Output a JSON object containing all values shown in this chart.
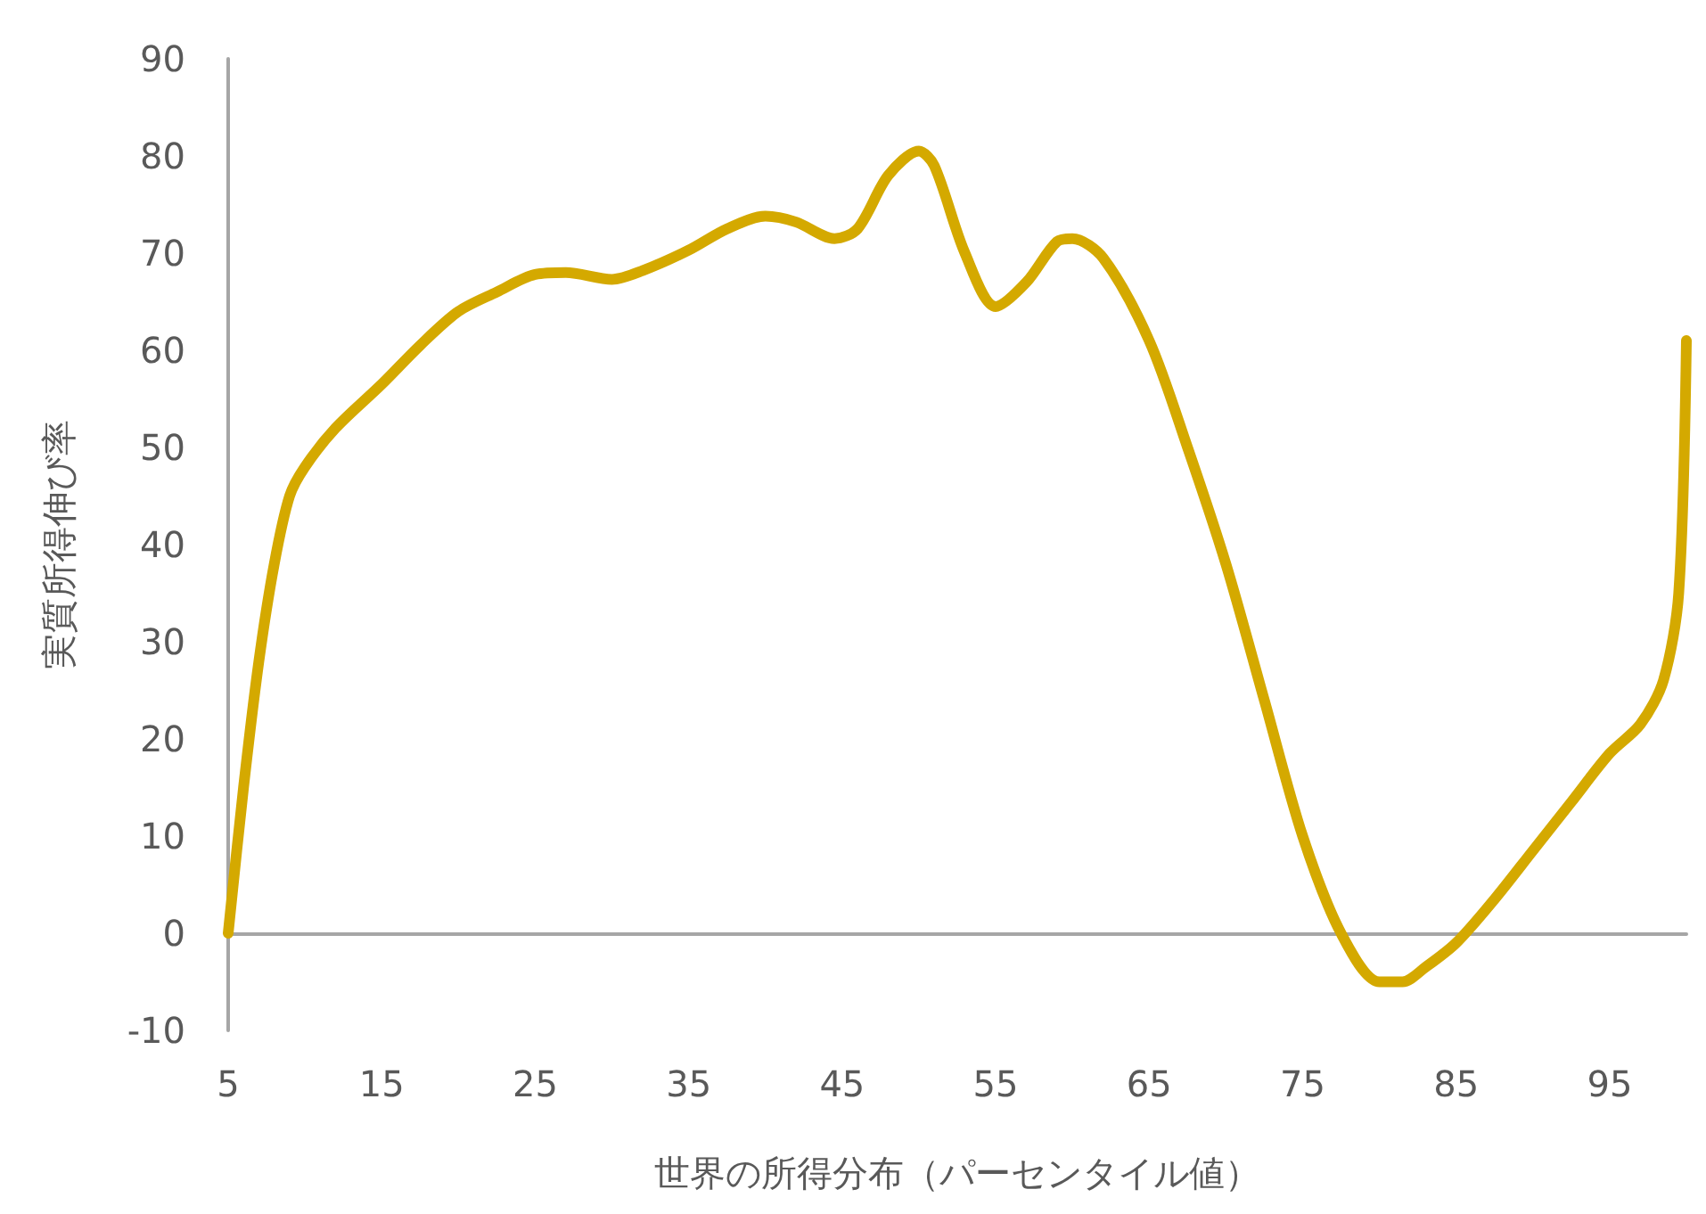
{
  "chart_data": {
    "type": "line",
    "xlabel": "世界の所得分布（パーセンタイル値）",
    "ylabel": "実質所得伸び率",
    "x": [
      5,
      6,
      7,
      8,
      9,
      10,
      12,
      15,
      17.5,
      20,
      22.5,
      25,
      27,
      30,
      32,
      35,
      37.5,
      40,
      42,
      44.5,
      46,
      48,
      50,
      51,
      53,
      55,
      57,
      59,
      60,
      62,
      65,
      67.5,
      70,
      72.5,
      75,
      77.5,
      80,
      81.5,
      83,
      85,
      87.5,
      90,
      92.5,
      95,
      97,
      98.5,
      99.5,
      100
    ],
    "series": [
      {
        "color": "#d4a900",
        "values": [
          0,
          15,
          28,
          38,
          45,
          48,
          52,
          56.5,
          60.5,
          64,
          66,
          67.8,
          68,
          67.3,
          68.2,
          70.3,
          72.5,
          73.8,
          73.2,
          71.5,
          72.5,
          78,
          80.5,
          79,
          70,
          64.5,
          67,
          71.2,
          71.5,
          69.5,
          61,
          50,
          38,
          24,
          10,
          0,
          -5,
          -5,
          -3.5,
          -1,
          3.5,
          8.5,
          13.5,
          18.5,
          21.5,
          26,
          35,
          61
        ]
      }
    ],
    "xlim": [
      5,
      100
    ],
    "xticks": [
      5,
      15,
      25,
      35,
      45,
      55,
      65,
      75,
      85,
      95
    ],
    "ylim": [
      -10,
      90
    ],
    "yticks": [
      -10,
      0,
      10,
      20,
      30,
      40,
      50,
      60,
      70,
      80,
      90
    ],
    "marker": "none",
    "line_style": "solid"
  }
}
